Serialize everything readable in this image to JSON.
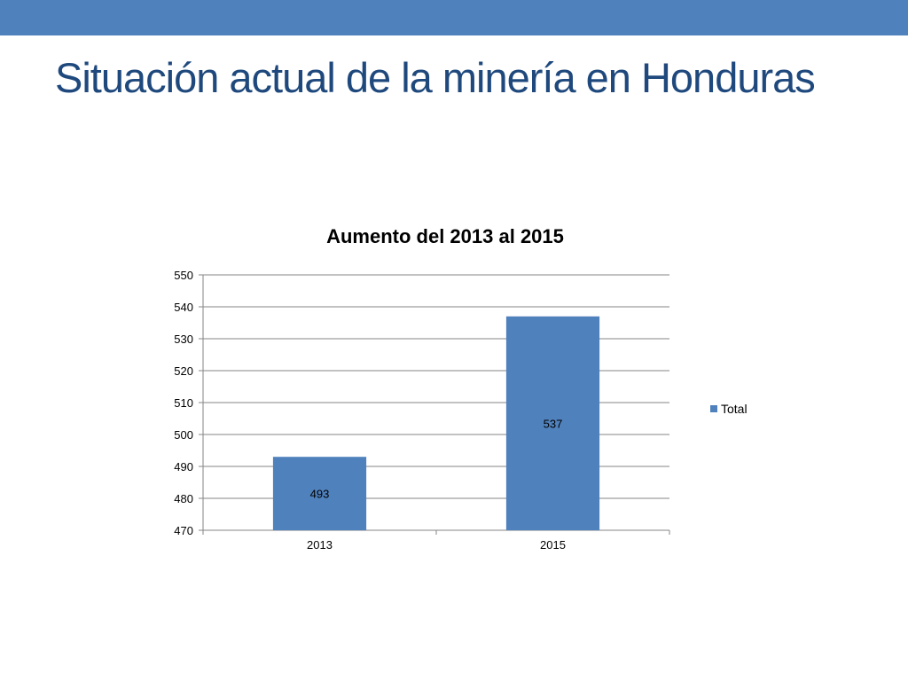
{
  "slide": {
    "title": "Situación actual de la minería en Honduras",
    "accent_color": "#4f81bd",
    "title_color": "#1f497d"
  },
  "chart_data": {
    "type": "bar",
    "title": "Aumento del 2013 al 2015",
    "categories": [
      "2013",
      "2015"
    ],
    "series": [
      {
        "name": "Total",
        "values": [
          493,
          537
        ],
        "color": "#4f81bd"
      }
    ],
    "ylim": [
      470,
      550
    ],
    "yticks": [
      470,
      480,
      490,
      500,
      510,
      520,
      530,
      540,
      550
    ],
    "grid": true,
    "legend_position": "right",
    "data_labels": true
  }
}
